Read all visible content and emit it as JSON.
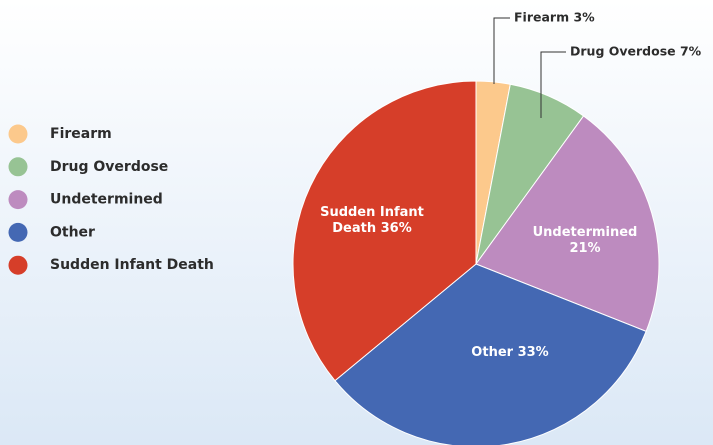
{
  "chart_data": {
    "type": "pie",
    "categories": [
      "Firearm",
      "Drug Overdose",
      "Undetermined",
      "Other",
      "Sudden Infant Death"
    ],
    "values": [
      3,
      7,
      21,
      33,
      36
    ],
    "value_labels": [
      "Firearm 3%",
      "Drug Overdose 7%",
      "Undetermined 21%",
      "Other 33%",
      "Sudden Infant Death 36%"
    ],
    "colors": [
      "#fcc98c",
      "#97c394",
      "#bd8bbf",
      "#4468b3",
      "#d63e29"
    ],
    "legend": "left"
  }
}
